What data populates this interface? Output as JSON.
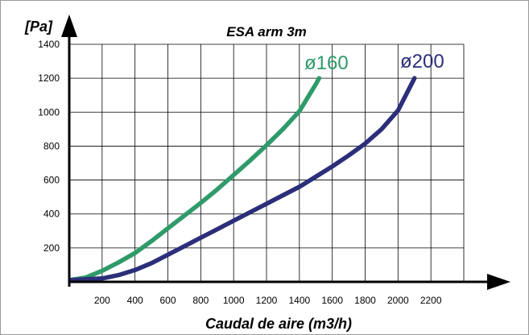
{
  "chart_data": {
    "type": "line",
    "title": "ESA arm 3m",
    "xlabel": "Caudal de aire (m3/h)",
    "ylabel": "[Pa]",
    "xlim": [
      0,
      2400
    ],
    "ylim": [
      0,
      1400
    ],
    "x_ticks": [
      200,
      400,
      600,
      800,
      1000,
      1200,
      1400,
      1600,
      1800,
      2000,
      2200
    ],
    "y_ticks": [
      200,
      400,
      600,
      800,
      1000,
      1200,
      1400
    ],
    "grid": true,
    "series": [
      {
        "name": "ø160",
        "color": "#2f9a6a",
        "x": [
          0,
          100,
          200,
          300,
          400,
          500,
          600,
          700,
          800,
          900,
          1000,
          1100,
          1200,
          1300,
          1400,
          1500,
          1520
        ],
        "y": [
          10,
          25,
          65,
          115,
          170,
          240,
          315,
          390,
          465,
          545,
          630,
          715,
          805,
          900,
          1005,
          1165,
          1200
        ]
      },
      {
        "name": "ø200",
        "color": "#2b2f7a",
        "x": [
          0,
          200,
          300,
          400,
          500,
          600,
          700,
          800,
          900,
          1000,
          1100,
          1200,
          1300,
          1400,
          1500,
          1600,
          1700,
          1800,
          1900,
          2000,
          2100
        ],
        "y": [
          10,
          20,
          40,
          70,
          110,
          160,
          210,
          260,
          310,
          360,
          410,
          460,
          510,
          560,
          620,
          680,
          745,
          815,
          900,
          1010,
          1200
        ]
      }
    ]
  }
}
